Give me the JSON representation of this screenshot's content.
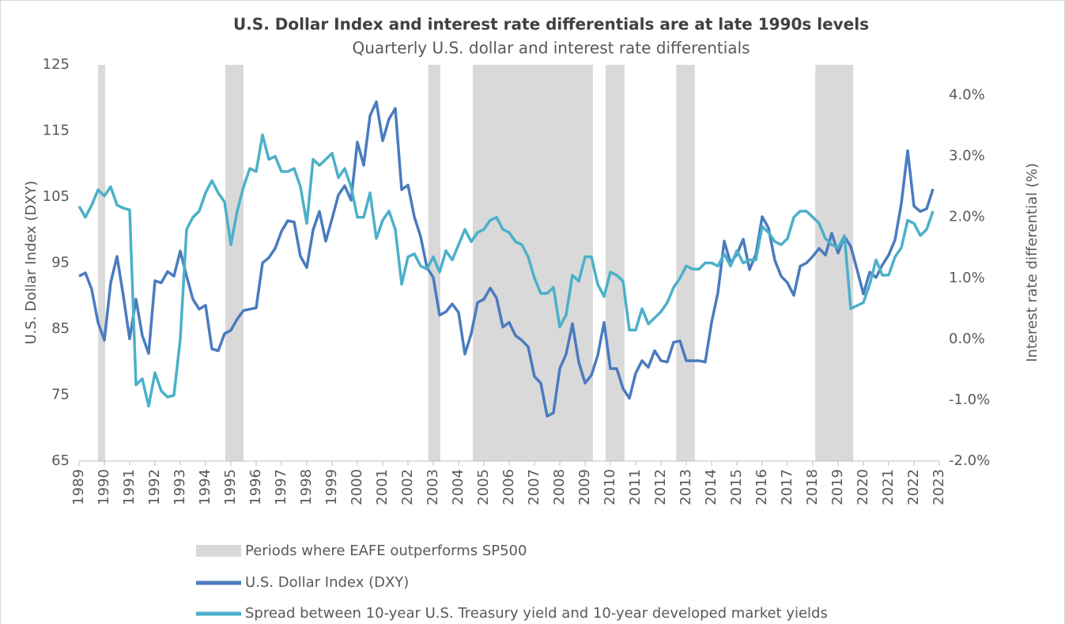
{
  "chart_data": {
    "type": "line",
    "title": "U.S. Dollar Index and interest rate differentials are at late 1990s levels",
    "subtitle": "Quarterly U.S. dollar and interest rate differentials",
    "ylabel": "U.S. Dollar Index (DXY)",
    "y2label": "Interest rate differential (%)",
    "xlim": [
      1989,
      2023
    ],
    "xticks": [
      1989,
      1990,
      1991,
      1992,
      1993,
      1994,
      1995,
      1996,
      1997,
      1998,
      1999,
      2000,
      2001,
      2002,
      2003,
      2004,
      2005,
      2006,
      2007,
      2008,
      2009,
      2010,
      2011,
      2012,
      2013,
      2014,
      2015,
      2016,
      2017,
      2018,
      2019,
      2020,
      2021,
      2022,
      2023
    ],
    "ylim": [
      65,
      125
    ],
    "yticks": [
      65,
      75,
      85,
      95,
      105,
      115,
      125
    ],
    "y2lim": [
      -2,
      4.5
    ],
    "y2ticks": [
      {
        "value": -2,
        "label": "-2.0%"
      },
      {
        "value": -1,
        "label": "-1.0%"
      },
      {
        "value": 0,
        "label": "0.0%"
      },
      {
        "value": 1,
        "label": "1.0%"
      },
      {
        "value": 2,
        "label": "2.0%"
      },
      {
        "value": 3,
        "label": "3.0%"
      },
      {
        "value": 4,
        "label": "4.0%"
      }
    ],
    "shaded_periods": {
      "name": "Periods where EAFE outperforms SP500",
      "color": "#d9d9d9",
      "ranges": [
        [
          1989.75,
          1990.03
        ],
        [
          1994.78,
          1995.5
        ],
        [
          2002.8,
          2003.28
        ],
        [
          2004.56,
          2009.31
        ],
        [
          2009.81,
          2010.56
        ],
        [
          2012.6,
          2013.34
        ],
        [
          2018.1,
          2019.6
        ]
      ]
    },
    "x": [
      1989,
      1989.25,
      1989.5,
      1989.75,
      1990,
      1990.25,
      1990.5,
      1990.75,
      1991,
      1991.25,
      1991.5,
      1991.75,
      1992,
      1992.25,
      1992.5,
      1992.75,
      1993,
      1993.25,
      1993.5,
      1993.75,
      1994,
      1994.25,
      1994.5,
      1994.75,
      1995,
      1995.25,
      1995.5,
      1995.75,
      1996,
      1996.25,
      1996.5,
      1996.75,
      1997,
      1997.25,
      1997.5,
      1997.75,
      1998,
      1998.25,
      1998.5,
      1998.75,
      1999,
      1999.25,
      1999.5,
      1999.75,
      2000,
      2000.25,
      2000.5,
      2000.75,
      2001,
      2001.25,
      2001.5,
      2001.75,
      2002,
      2002.25,
      2002.5,
      2002.75,
      2003,
      2003.25,
      2003.5,
      2003.75,
      2004,
      2004.25,
      2004.5,
      2004.75,
      2005,
      2005.25,
      2005.5,
      2005.75,
      2006,
      2006.25,
      2006.5,
      2006.75,
      2007,
      2007.25,
      2007.5,
      2007.75,
      2008,
      2008.25,
      2008.5,
      2008.75,
      2009,
      2009.25,
      2009.5,
      2009.75,
      2010,
      2010.25,
      2010.5,
      2010.75,
      2011,
      2011.25,
      2011.5,
      2011.75,
      2012,
      2012.25,
      2012.5,
      2012.75,
      2013,
      2013.25,
      2013.5,
      2013.75,
      2014,
      2014.25,
      2014.5,
      2014.75,
      2015,
      2015.25,
      2015.5,
      2015.75,
      2016,
      2016.25,
      2016.5,
      2016.75,
      2017,
      2017.25,
      2017.5,
      2017.75,
      2018,
      2018.25,
      2018.5,
      2018.75,
      2019,
      2019.25,
      2019.5,
      2019.75,
      2020,
      2020.25,
      2020.5,
      2020.75,
      2021,
      2021.25,
      2021.5,
      2021.75,
      2022,
      2022.25,
      2022.5,
      2022.75
    ],
    "series": [
      {
        "name": "U.S. Dollar Index (DXY)",
        "color": "#4a7bbf",
        "values": [
          93,
          93.5,
          91,
          86,
          83.3,
          92,
          96,
          90,
          83.5,
          89.5,
          84,
          81.3,
          92.3,
          92,
          93.7,
          93,
          96.8,
          93,
          89.5,
          88,
          88.6,
          82,
          81.7,
          84.3,
          84.8,
          86.5,
          87.8,
          88,
          88.2,
          95,
          95.8,
          97.2,
          99.8,
          101.4,
          101.2,
          96,
          94.3,
          100,
          102.8,
          98.3,
          101.7,
          105.3,
          106.7,
          104.5,
          113.3,
          109.8,
          117.3,
          119.4,
          113.5,
          116.8,
          118.4,
          106.1,
          106.8,
          102,
          99,
          94.3,
          92.8,
          87.1,
          87.6,
          88.8,
          87.5,
          81.2,
          84.3,
          89,
          89.5,
          91.2,
          89.7,
          85.3,
          86,
          84,
          83.3,
          82.3,
          77.8,
          76.8,
          71.8,
          72.3,
          79,
          81.2,
          85.8,
          80,
          76.8,
          78,
          81,
          86,
          79,
          79,
          76,
          74.5,
          78.3,
          80.2,
          79.2,
          81.7,
          80.2,
          80,
          83,
          83.2,
          80.2,
          80.2,
          80.2,
          80,
          86,
          90.5,
          98.3,
          95,
          96.3,
          98.6,
          94,
          96.3,
          102,
          100.3,
          95.4,
          93,
          92,
          90.1,
          94.5,
          95,
          96,
          97.2,
          96.2,
          99.5,
          96.5,
          99,
          97.5,
          94,
          90.3,
          93.6,
          92.8,
          94.7,
          96.2,
          98.5,
          104,
          112,
          103.6,
          102.8,
          103.2,
          106.2
        ]
      },
      {
        "name": "Spread between 10-year U.S. Treasury yield and 10-year developed market yields",
        "color": "#4bb0c9",
        "axis": "y2",
        "values": [
          2.18,
          2.0,
          2.2,
          2.45,
          2.35,
          2.5,
          2.2,
          2.15,
          2.12,
          -0.75,
          -0.65,
          -1.1,
          -0.55,
          -0.85,
          -0.95,
          -0.92,
          0.0,
          1.8,
          2.0,
          2.1,
          2.4,
          2.6,
          2.4,
          2.25,
          1.55,
          2.1,
          2.5,
          2.8,
          2.75,
          3.35,
          2.95,
          3.0,
          2.75,
          2.75,
          2.8,
          2.5,
          1.9,
          2.95,
          2.85,
          2.95,
          3.05,
          2.65,
          2.8,
          2.5,
          2.0,
          2.0,
          2.4,
          1.65,
          1.95,
          2.1,
          1.8,
          0.9,
          1.35,
          1.4,
          1.2,
          1.15,
          1.35,
          1.1,
          1.45,
          1.3,
          1.55,
          1.8,
          1.6,
          1.75,
          1.8,
          1.95,
          2.0,
          1.8,
          1.75,
          1.6,
          1.55,
          1.35,
          1.0,
          0.75,
          0.75,
          0.85,
          0.2,
          0.4,
          1.05,
          0.95,
          1.35,
          1.35,
          0.9,
          0.7,
          1.1,
          1.05,
          0.95,
          0.15,
          0.15,
          0.5,
          0.25,
          0.35,
          0.45,
          0.6,
          0.85,
          1.0,
          1.2,
          1.15,
          1.15,
          1.25,
          1.25,
          1.2,
          1.4,
          1.2,
          1.45,
          1.25,
          1.3,
          1.3,
          1.85,
          1.75,
          1.6,
          1.55,
          1.65,
          2.0,
          2.1,
          2.1,
          2.0,
          1.9,
          1.65,
          1.55,
          1.5,
          1.7,
          0.5,
          0.55,
          0.6,
          0.9,
          1.3,
          1.05,
          1.05,
          1.35,
          1.5,
          1.95,
          1.9,
          1.7,
          1.8,
          2.1
        ]
      }
    ]
  }
}
